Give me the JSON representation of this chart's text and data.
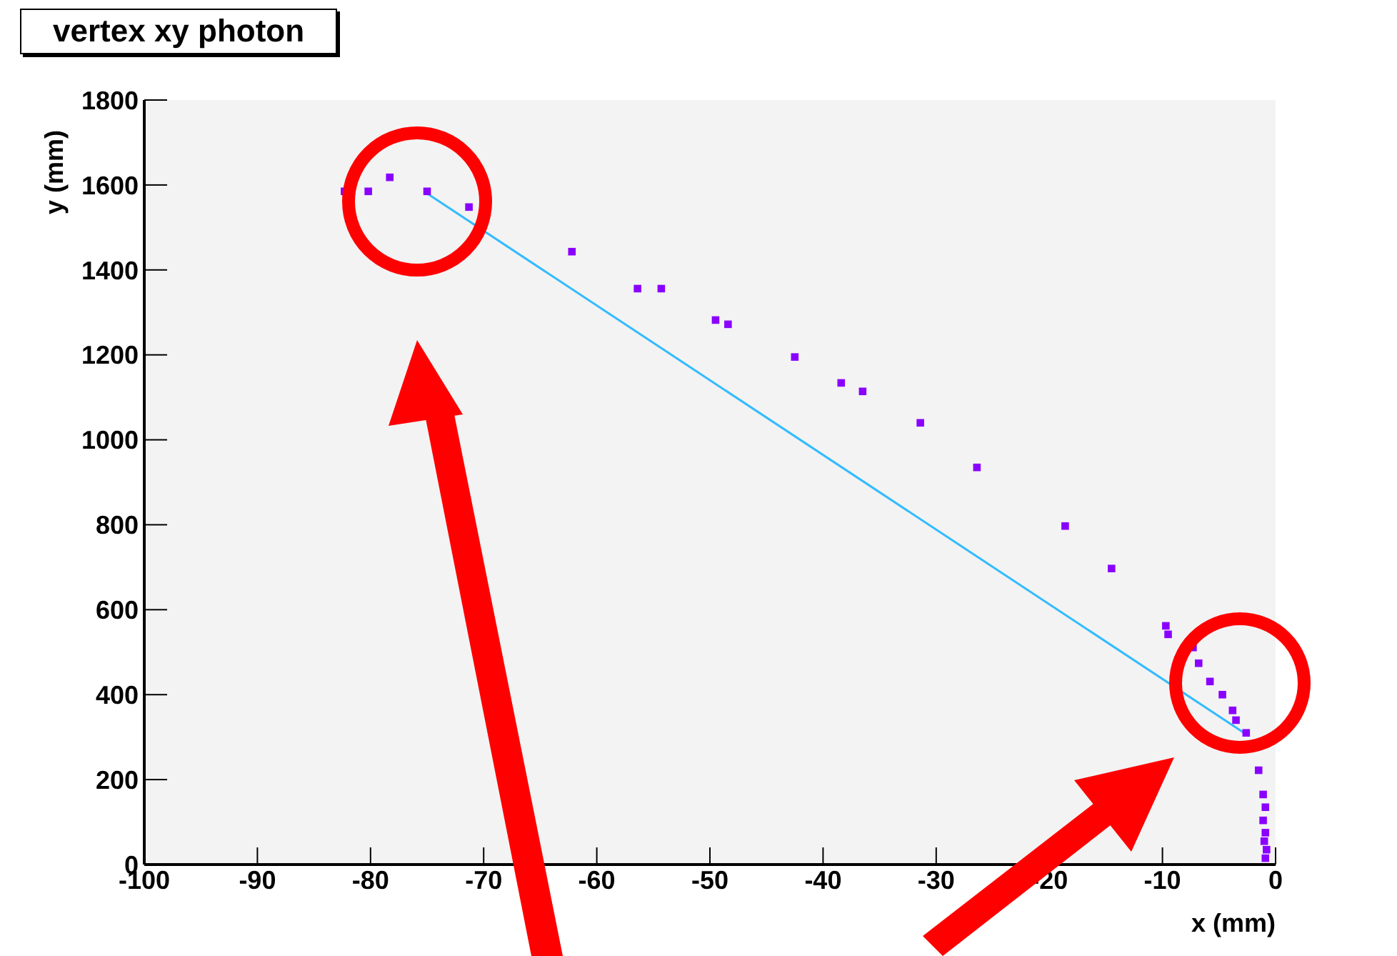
{
  "chart_data": {
    "type": "scatter",
    "title": "vertex xy photon",
    "xlabel": "x (mm)",
    "ylabel": "y (mm)",
    "xlim": [
      -100,
      0
    ],
    "xticks": [
      -100,
      -90,
      -80,
      -70,
      -60,
      -50,
      -40,
      -30,
      -20,
      -10,
      0
    ],
    "ylim": [
      0,
      1800
    ],
    "yticks": [
      0,
      200,
      400,
      600,
      800,
      1000,
      1200,
      1400,
      1600,
      1800
    ],
    "grid": false,
    "legend": false,
    "x": [
      -82.3,
      -80.2,
      -78.3,
      -75,
      -71.3,
      -62.2,
      -56.4,
      -54.3,
      -49.5,
      -48.4,
      -42.5,
      -38.4,
      -36.5,
      -31.4,
      -26.4,
      -18.6,
      -14.5,
      -9.7,
      -9.5,
      -7.3,
      -6.8,
      -5.8,
      -4.7,
      -3.8,
      -3.5,
      -2.6,
      -1.5,
      -1.1,
      -0.9,
      -1.1,
      -0.9,
      -1.0,
      -0.8,
      -0.9
    ],
    "series": [
      {
        "type": "line",
        "color": "#33bbff",
        "x": [
          -75,
          -2.5
        ],
        "values": [
          1580,
          305
        ]
      },
      {
        "type": "scatter",
        "color": "#8a00ff",
        "marker": "square",
        "values": [
          1585,
          1585,
          1618,
          1585,
          1548,
          1443,
          1356,
          1356,
          1282,
          1272,
          1195,
          1134,
          1114,
          1040,
          935,
          797,
          697,
          562,
          542,
          511,
          474,
          431,
          400,
          363,
          340,
          310,
          222,
          165,
          135,
          104,
          75,
          55,
          35,
          15
        ]
      }
    ]
  }
}
